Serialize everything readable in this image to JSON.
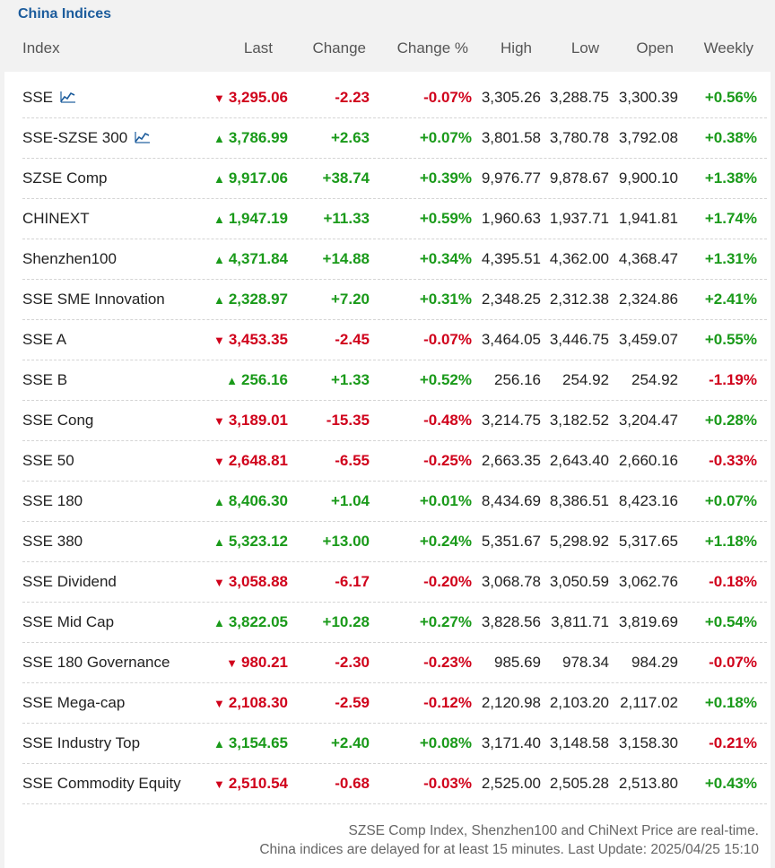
{
  "title": "China Indices",
  "columns": [
    "Index",
    "Last",
    "Change",
    "Change %",
    "High",
    "Low",
    "Open",
    "Weekly"
  ],
  "colors": {
    "up": "#1a9a1a",
    "down": "#d0021b",
    "title": "#1c5c9c"
  },
  "rows": [
    {
      "name": "SSE",
      "chart": true,
      "dir": "down",
      "last": "3,295.06",
      "change": "-2.23",
      "pct": "-0.07%",
      "high": "3,305.26",
      "low": "3,288.75",
      "open": "3,300.39",
      "weekly": "+0.56%"
    },
    {
      "name": "SSE-SZSE 300",
      "chart": true,
      "dir": "up",
      "last": "3,786.99",
      "change": "+2.63",
      "pct": "+0.07%",
      "high": "3,801.58",
      "low": "3,780.78",
      "open": "3,792.08",
      "weekly": "+0.38%"
    },
    {
      "name": "SZSE Comp",
      "chart": false,
      "dir": "up",
      "last": "9,917.06",
      "change": "+38.74",
      "pct": "+0.39%",
      "high": "9,976.77",
      "low": "9,878.67",
      "open": "9,900.10",
      "weekly": "+1.38%"
    },
    {
      "name": "CHINEXT",
      "chart": false,
      "dir": "up",
      "last": "1,947.19",
      "change": "+11.33",
      "pct": "+0.59%",
      "high": "1,960.63",
      "low": "1,937.71",
      "open": "1,941.81",
      "weekly": "+1.74%"
    },
    {
      "name": "Shenzhen100",
      "chart": false,
      "dir": "up",
      "last": "4,371.84",
      "change": "+14.88",
      "pct": "+0.34%",
      "high": "4,395.51",
      "low": "4,362.00",
      "open": "4,368.47",
      "weekly": "+1.31%"
    },
    {
      "name": "SSE SME Innovation",
      "chart": false,
      "dir": "up",
      "last": "2,328.97",
      "change": "+7.20",
      "pct": "+0.31%",
      "high": "2,348.25",
      "low": "2,312.38",
      "open": "2,324.86",
      "weekly": "+2.41%"
    },
    {
      "name": "SSE A",
      "chart": false,
      "dir": "down",
      "last": "3,453.35",
      "change": "-2.45",
      "pct": "-0.07%",
      "high": "3,464.05",
      "low": "3,446.75",
      "open": "3,459.07",
      "weekly": "+0.55%"
    },
    {
      "name": "SSE B",
      "chart": false,
      "dir": "up",
      "last": "256.16",
      "change": "+1.33",
      "pct": "+0.52%",
      "high": "256.16",
      "low": "254.92",
      "open": "254.92",
      "weekly": "-1.19%"
    },
    {
      "name": "SSE Cong",
      "chart": false,
      "dir": "down",
      "last": "3,189.01",
      "change": "-15.35",
      "pct": "-0.48%",
      "high": "3,214.75",
      "low": "3,182.52",
      "open": "3,204.47",
      "weekly": "+0.28%"
    },
    {
      "name": "SSE 50",
      "chart": false,
      "dir": "down",
      "last": "2,648.81",
      "change": "-6.55",
      "pct": "-0.25%",
      "high": "2,663.35",
      "low": "2,643.40",
      "open": "2,660.16",
      "weekly": "-0.33%"
    },
    {
      "name": "SSE 180",
      "chart": false,
      "dir": "up",
      "last": "8,406.30",
      "change": "+1.04",
      "pct": "+0.01%",
      "high": "8,434.69",
      "low": "8,386.51",
      "open": "8,423.16",
      "weekly": "+0.07%"
    },
    {
      "name": "SSE 380",
      "chart": false,
      "dir": "up",
      "last": "5,323.12",
      "change": "+13.00",
      "pct": "+0.24%",
      "high": "5,351.67",
      "low": "5,298.92",
      "open": "5,317.65",
      "weekly": "+1.18%"
    },
    {
      "name": "SSE Dividend",
      "chart": false,
      "dir": "down",
      "last": "3,058.88",
      "change": "-6.17",
      "pct": "-0.20%",
      "high": "3,068.78",
      "low": "3,050.59",
      "open": "3,062.76",
      "weekly": "-0.18%"
    },
    {
      "name": "SSE Mid Cap",
      "chart": false,
      "dir": "up",
      "last": "3,822.05",
      "change": "+10.28",
      "pct": "+0.27%",
      "high": "3,828.56",
      "low": "3,811.71",
      "open": "3,819.69",
      "weekly": "+0.54%"
    },
    {
      "name": "SSE 180 Governance",
      "chart": false,
      "dir": "down",
      "last": "980.21",
      "change": "-2.30",
      "pct": "-0.23%",
      "high": "985.69",
      "low": "978.34",
      "open": "984.29",
      "weekly": "-0.07%"
    },
    {
      "name": "SSE Mega-cap",
      "chart": false,
      "dir": "down",
      "last": "2,108.30",
      "change": "-2.59",
      "pct": "-0.12%",
      "high": "2,120.98",
      "low": "2,103.20",
      "open": "2,117.02",
      "weekly": "+0.18%"
    },
    {
      "name": "SSE Industry Top",
      "chart": false,
      "dir": "up",
      "last": "3,154.65",
      "change": "+2.40",
      "pct": "+0.08%",
      "high": "3,171.40",
      "low": "3,148.58",
      "open": "3,158.30",
      "weekly": "-0.21%"
    },
    {
      "name": "SSE Commodity Equity",
      "chart": false,
      "dir": "down",
      "last": "2,510.54",
      "change": "-0.68",
      "pct": "-0.03%",
      "high": "2,525.00",
      "low": "2,505.28",
      "open": "2,513.80",
      "weekly": "+0.43%"
    }
  ],
  "footer": {
    "line1": "SZSE Comp Index, Shenzhen100 and ChiNext Price are real-time.",
    "line2": "China indices are delayed for at least 15 minutes. Last Update: 2025/04/25 15:10"
  }
}
